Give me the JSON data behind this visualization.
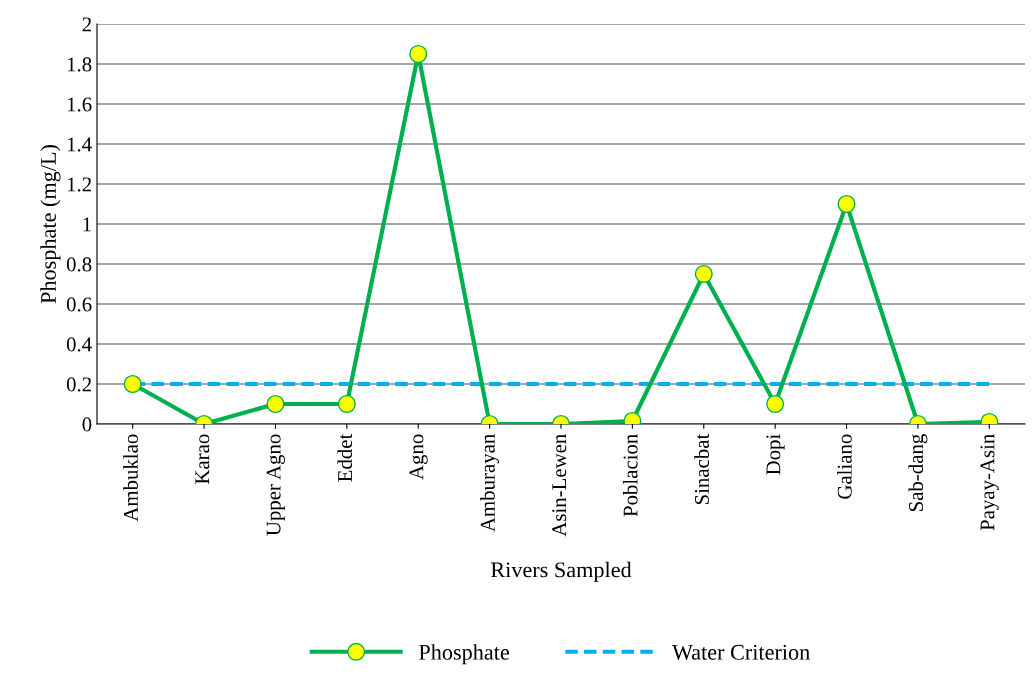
{
  "chart_data": {
    "type": "line",
    "xlabel": "Rivers Sampled",
    "ylabel": "Phosphate (mg/L)",
    "categories": [
      "Ambuklao",
      "Karao",
      "Upper Agno",
      "Eddet",
      "Agno",
      "Amburayan",
      "Asin-Lewen",
      "Poblacion",
      "Sinacbat",
      "Dopi",
      "Galiano",
      "Sab-dang",
      "Payay-Asin"
    ],
    "series": [
      {
        "name": "Phosphate",
        "color": "#00b050",
        "marker": "circle",
        "line_style": "solid",
        "values": [
          0.2,
          0,
          0.1,
          0.1,
          1.85,
          0,
          0,
          0.015,
          0.75,
          0.1,
          1.1,
          0,
          0.01
        ]
      },
      {
        "name": "Water Criterion",
        "color": "#00b0f0",
        "marker": "none",
        "line_style": "dashed",
        "values": [
          0.2,
          0.2,
          0.2,
          0.2,
          0.2,
          0.2,
          0.2,
          0.2,
          0.2,
          0.2,
          0.2,
          0.2,
          0.2
        ]
      }
    ],
    "ylim": [
      0,
      2
    ],
    "yticks": [
      0,
      0.2,
      0.4,
      0.6,
      0.8,
      1,
      1.2,
      1.4,
      1.6,
      1.8,
      2
    ],
    "grid": "y",
    "legend": "bottom"
  }
}
